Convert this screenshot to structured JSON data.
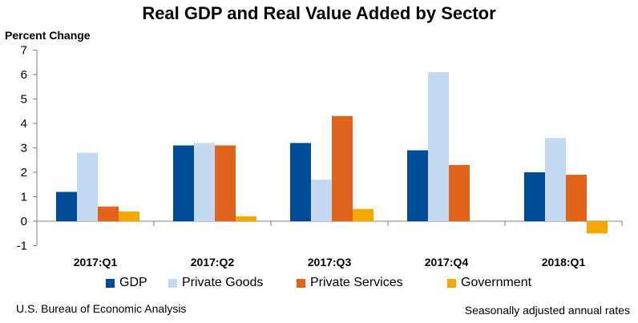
{
  "chart_data": {
    "type": "bar",
    "title": "Real GDP and Real Value Added by Sector",
    "ylabel": "Percent Change",
    "xlabel": "",
    "ylim": [
      -1,
      7
    ],
    "yticks": [
      -1,
      0,
      1,
      2,
      3,
      4,
      5,
      6,
      7
    ],
    "grid": false,
    "legend_position": "bottom",
    "categories": [
      "2017:Q1",
      "2017:Q2",
      "2017:Q3",
      "2017:Q4",
      "2018:Q1"
    ],
    "series": [
      {
        "name": "GDP",
        "color": "#004c97",
        "values": [
          1.2,
          3.1,
          3.2,
          2.9,
          2.0
        ]
      },
      {
        "name": "Private Goods",
        "color": "#c5d9f1",
        "values": [
          2.8,
          3.2,
          1.7,
          6.1,
          3.4
        ]
      },
      {
        "name": "Private Services",
        "color": "#e0631c",
        "values": [
          0.6,
          3.1,
          4.3,
          2.3,
          1.9
        ]
      },
      {
        "name": "Government",
        "color": "#f5a800",
        "values": [
          0.4,
          0.2,
          0.5,
          0.0,
          -0.5
        ]
      }
    ]
  },
  "footer": {
    "source": "U.S. Bureau of Economic Analysis",
    "note": "Seasonally adjusted annual rates"
  }
}
